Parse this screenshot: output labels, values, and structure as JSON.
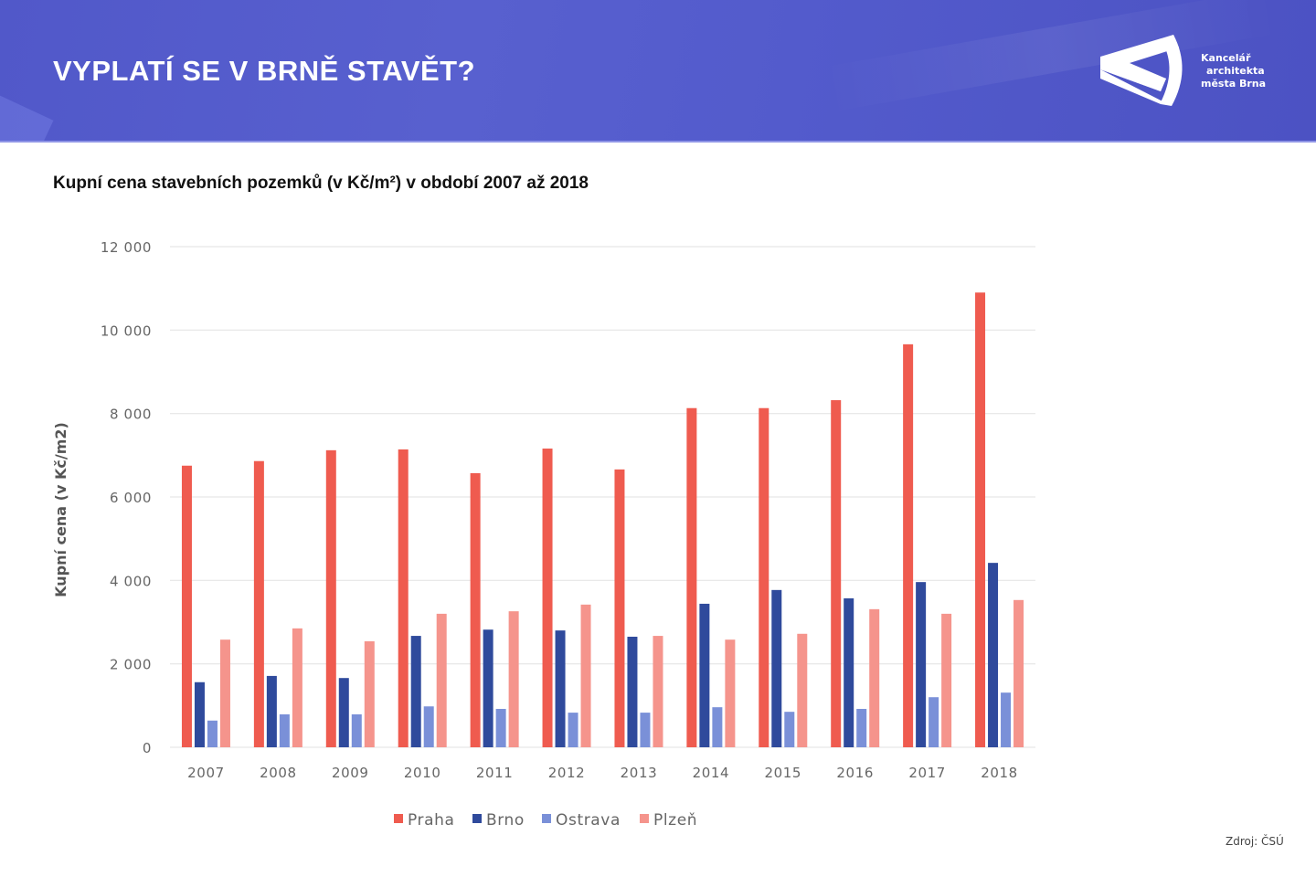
{
  "header": {
    "title": "VYPLATÍ SE V BRNĚ STAVĚT?",
    "logo": {
      "icon": "kam-logo-icon",
      "lines": [
        "Kancelář",
        "architekta",
        "města Brna"
      ]
    },
    "colors": {
      "background": "#5459cb",
      "text": "#ffffff"
    }
  },
  "source": "Zdroj: ČSÚ",
  "chart_data": {
    "type": "bar",
    "title": "Kupní cena stavebních pozemků (v Kč/m²) v období 2007 až 2018",
    "xlabel": "",
    "ylabel": "Kupní cena (v Kč/m2)",
    "ylim": [
      0,
      12000
    ],
    "yticks": [
      0,
      2000,
      4000,
      6000,
      8000,
      10000,
      12000
    ],
    "ytick_labels": [
      "0",
      "2 000",
      "4 000",
      "6 000",
      "8 000",
      "10 000",
      "12 000"
    ],
    "grid": true,
    "legend_position": "bottom-center",
    "categories": [
      "2007",
      "2008",
      "2009",
      "2010",
      "2011",
      "2012",
      "2013",
      "2014",
      "2015",
      "2016",
      "2017",
      "2018"
    ],
    "series": [
      {
        "name": "Praha",
        "color": "#ef5b4f",
        "values": [
          6750,
          6860,
          7120,
          7140,
          6570,
          7160,
          6660,
          8130,
          8130,
          8320,
          9660,
          10900
        ]
      },
      {
        "name": "Brno",
        "color": "#2f4a9c",
        "values": [
          1560,
          1710,
          1660,
          2670,
          2820,
          2800,
          2650,
          3440,
          3770,
          3570,
          3960,
          4420
        ]
      },
      {
        "name": "Ostrava",
        "color": "#7a90d8",
        "values": [
          640,
          790,
          790,
          980,
          920,
          830,
          830,
          960,
          850,
          920,
          1200,
          1310
        ]
      },
      {
        "name": "Plzeň",
        "color": "#f5948c",
        "values": [
          2580,
          2850,
          2540,
          3200,
          3260,
          3420,
          2670,
          2580,
          2720,
          3310,
          3200,
          3530
        ]
      }
    ]
  }
}
